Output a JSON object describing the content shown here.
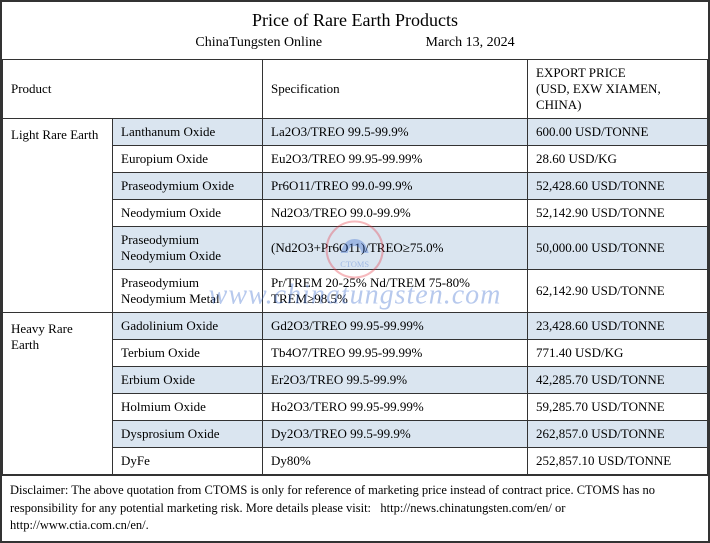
{
  "title": "Price of Rare Earth Products",
  "source": "ChinaTungsten Online",
  "date": "March 13, 2024",
  "headers": {
    "product": "Product",
    "specification": "Specification",
    "export_price": "EXPORT PRICE",
    "export_price_sub": "(USD, EXW XIAMEN, CHINA)"
  },
  "categories": [
    {
      "name": "Light Rare Earth",
      "rows": [
        {
          "product": "Lanthanum Oxide",
          "spec": "La2O3/TREO 99.5-99.9%",
          "price": "600.00 USD/TONNE"
        },
        {
          "product": "Europium Oxide",
          "spec": "Eu2O3/TREO 99.95-99.99%",
          "price": "28.60 USD/KG"
        },
        {
          "product": "Praseodymium Oxide",
          "spec": "Pr6O11/TREO 99.0-99.9%",
          "price": "52,428.60 USD/TONNE"
        },
        {
          "product": "Neodymium Oxide",
          "spec": "Nd2O3/TREO 99.0-99.9%",
          "price": "52,142.90 USD/TONNE"
        },
        {
          "product": "Praseodymium Neodymium Oxide",
          "spec": "(Nd2O3+Pr6O11)/TREO≥75.0%",
          "price": "50,000.00 USD/TONNE"
        },
        {
          "product": "Praseodymium Neodymium Metal",
          "spec": "Pr/TREM 20-25% Nd/TREM 75-80% TREM≥98.5%",
          "price": "62,142.90 USD/TONNE"
        }
      ]
    },
    {
      "name": "Heavy Rare Earth",
      "rows": [
        {
          "product": "Gadolinium Oxide",
          "spec": "Gd2O3/TREO 99.95-99.99%",
          "price": "23,428.60 USD/TONNE"
        },
        {
          "product": "Terbium Oxide",
          "spec": "Tb4O7/TREO 99.95-99.99%",
          "price": "771.40 USD/KG"
        },
        {
          "product": "Erbium Oxide",
          "spec": "Er2O3/TREO 99.5-99.9%",
          "price": "42,285.70 USD/TONNE"
        },
        {
          "product": "Holmium Oxide",
          "spec": "Ho2O3/TERO 99.95-99.99%",
          "price": "59,285.70 USD/TONNE"
        },
        {
          "product": "Dysprosium Oxide",
          "spec": "Dy2O3/TREO 99.5-99.9%",
          "price": "262,857.0 USD/TONNE"
        },
        {
          "product": "DyFe",
          "spec": "Dy80%",
          "price": "252,857.10 USD/TONNE"
        }
      ]
    }
  ],
  "disclaimer": "Disclaimer: The above quotation from CTOMS is only for reference of marketing price instead of contract price. CTOMS has no responsibility for any potential marketing risk. More details please visit:   http://news.chinatungsten.com/en/ or http://www.ctia.com.cn/en/.",
  "watermark": {
    "text": "www.chinatungsten.com",
    "logo_label": "CTOMS"
  },
  "colors": {
    "even_row": "#dae5f0",
    "odd_row": "#ffffff",
    "border": "#333333",
    "wm_text": "#3366cc",
    "wm_ring": "#e63946"
  }
}
